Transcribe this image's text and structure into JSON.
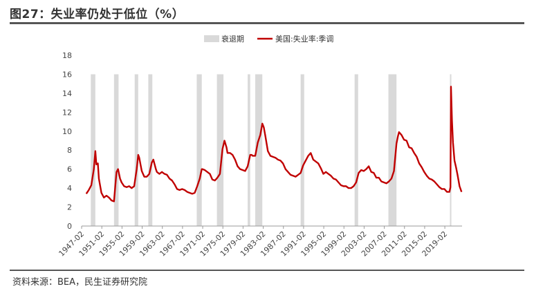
{
  "title": "图27：失业率仍处于低位（%）",
  "source": "资料来源：BEA，民生证券研究院",
  "colors": {
    "line": "#c00000",
    "recession": "#d9d9d9",
    "rule": "#555555"
  },
  "chart_data": {
    "type": "line",
    "title": "图27：失业率仍处于低位（%）",
    "xlabel": "",
    "ylabel": "",
    "ylim": [
      0,
      18
    ],
    "y_ticks": [
      0,
      2,
      4,
      6,
      8,
      10,
      12,
      14,
      16,
      18
    ],
    "xlim": [
      1947.08,
      2022.5
    ],
    "x_tick_labels": [
      "1947-02",
      "1951-02",
      "1955-02",
      "1959-02",
      "1963-02",
      "1967-02",
      "1971-02",
      "1975-02",
      "1979-02",
      "1983-02",
      "1987-02",
      "1991-02",
      "1995-02",
      "1999-02",
      "2003-02",
      "2007-02",
      "2011-02",
      "2015-02",
      "2019-02"
    ],
    "grid": false,
    "legend_position": "top-right",
    "legend": [
      {
        "label": "衰退期",
        "kind": "area"
      },
      {
        "label": "美国:失业率:季调",
        "kind": "line"
      }
    ],
    "recessions": [
      [
        1948.9,
        1949.8
      ],
      [
        1953.5,
        1954.4
      ],
      [
        1957.6,
        1958.3
      ],
      [
        1960.3,
        1961.1
      ],
      [
        1969.9,
        1970.9
      ],
      [
        1973.9,
        1975.2
      ],
      [
        1980.0,
        1980.5
      ],
      [
        1981.5,
        1982.9
      ],
      [
        1990.5,
        1991.2
      ],
      [
        2001.2,
        2001.9
      ],
      [
        2007.9,
        2009.5
      ],
      [
        2020.1,
        2020.3
      ]
    ],
    "series": [
      {
        "name": "美国:失业率:季调",
        "x": [
          1948.0,
          1948.5,
          1949.0,
          1949.5,
          1949.8,
          1950.0,
          1950.3,
          1950.5,
          1951.0,
          1951.5,
          1952.0,
          1952.5,
          1953.0,
          1953.5,
          1953.8,
          1954.0,
          1954.3,
          1954.7,
          1955.0,
          1955.5,
          1956.0,
          1956.5,
          1957.0,
          1957.5,
          1958.0,
          1958.3,
          1958.5,
          1959.0,
          1959.5,
          1960.0,
          1960.5,
          1961.0,
          1961.3,
          1961.8,
          1962.0,
          1962.5,
          1963.0,
          1963.5,
          1964.0,
          1964.5,
          1965.0,
          1965.5,
          1966.0,
          1966.5,
          1967.0,
          1967.5,
          1968.0,
          1968.5,
          1969.0,
          1969.5,
          1970.0,
          1970.5,
          1970.9,
          1971.0,
          1971.5,
          1972.0,
          1972.5,
          1973.0,
          1973.5,
          1974.0,
          1974.5,
          1975.0,
          1975.4,
          1975.8,
          1976.0,
          1976.5,
          1977.0,
          1977.5,
          1978.0,
          1978.5,
          1979.0,
          1979.5,
          1980.0,
          1980.5,
          1980.8,
          1981.0,
          1981.5,
          1982.0,
          1982.5,
          1982.9,
          1983.2,
          1983.5,
          1984.0,
          1984.5,
          1985.0,
          1985.5,
          1986.0,
          1986.5,
          1987.0,
          1987.5,
          1988.0,
          1988.5,
          1989.0,
          1989.5,
          1990.0,
          1990.5,
          1991.0,
          1991.5,
          1992.0,
          1992.5,
          1993.0,
          1993.5,
          1994.0,
          1994.5,
          1995.0,
          1995.5,
          1996.0,
          1996.5,
          1997.0,
          1997.5,
          1998.0,
          1998.5,
          1999.0,
          1999.5,
          2000.0,
          2000.5,
          2001.0,
          2001.5,
          2002.0,
          2002.5,
          2003.0,
          2003.5,
          2004.0,
          2004.5,
          2005.0,
          2005.5,
          2006.0,
          2006.5,
          2007.0,
          2007.5,
          2008.0,
          2008.5,
          2009.0,
          2009.5,
          2009.8,
          2010.0,
          2010.5,
          2011.0,
          2011.5,
          2012.0,
          2012.5,
          2013.0,
          2013.5,
          2014.0,
          2014.5,
          2015.0,
          2015.5,
          2016.0,
          2016.5,
          2017.0,
          2017.5,
          2018.0,
          2018.5,
          2019.0,
          2019.5,
          2020.0,
          2020.2,
          2020.3,
          2020.5,
          2020.7,
          2021.0,
          2021.3,
          2021.6,
          2022.0,
          2022.4
        ],
        "values": [
          3.4,
          3.8,
          4.3,
          6.0,
          7.9,
          6.5,
          6.6,
          5.0,
          3.5,
          3.0,
          3.2,
          3.0,
          2.7,
          2.6,
          4.5,
          5.7,
          6.0,
          5.0,
          4.6,
          4.2,
          4.1,
          4.2,
          4.0,
          4.2,
          6.0,
          7.5,
          7.2,
          5.8,
          5.2,
          5.2,
          5.5,
          6.7,
          7.0,
          6.0,
          5.7,
          5.5,
          5.7,
          5.5,
          5.4,
          5.0,
          4.8,
          4.4,
          3.9,
          3.8,
          3.9,
          3.8,
          3.6,
          3.5,
          3.4,
          3.5,
          4.2,
          5.0,
          6.0,
          6.0,
          5.9,
          5.7,
          5.5,
          4.9,
          4.8,
          5.1,
          5.5,
          8.1,
          9.0,
          8.3,
          7.7,
          7.7,
          7.5,
          7.0,
          6.3,
          6.0,
          5.9,
          5.8,
          6.3,
          7.5,
          7.5,
          7.4,
          7.4,
          8.8,
          9.6,
          10.8,
          10.4,
          9.5,
          7.9,
          7.4,
          7.3,
          7.2,
          7.0,
          6.9,
          6.6,
          6.0,
          5.7,
          5.4,
          5.3,
          5.2,
          5.4,
          5.6,
          6.4,
          6.9,
          7.4,
          7.7,
          7.0,
          6.8,
          6.6,
          6.1,
          5.5,
          5.7,
          5.5,
          5.3,
          5.0,
          4.9,
          4.6,
          4.3,
          4.2,
          4.2,
          4.0,
          4.0,
          4.2,
          4.6,
          5.6,
          5.9,
          5.8,
          6.0,
          6.3,
          5.7,
          5.6,
          5.1,
          5.1,
          4.7,
          4.6,
          4.5,
          4.7,
          5.0,
          5.8,
          8.7,
          9.5,
          9.9,
          9.6,
          9.1,
          9.0,
          8.3,
          8.2,
          7.7,
          7.3,
          6.6,
          6.2,
          5.7,
          5.3,
          5.0,
          4.9,
          4.7,
          4.4,
          4.1,
          3.9,
          3.9,
          3.6,
          3.6,
          4.1,
          14.7,
          11.1,
          8.8,
          6.9,
          6.2,
          5.4,
          4.2,
          3.6
        ]
      }
    ]
  }
}
